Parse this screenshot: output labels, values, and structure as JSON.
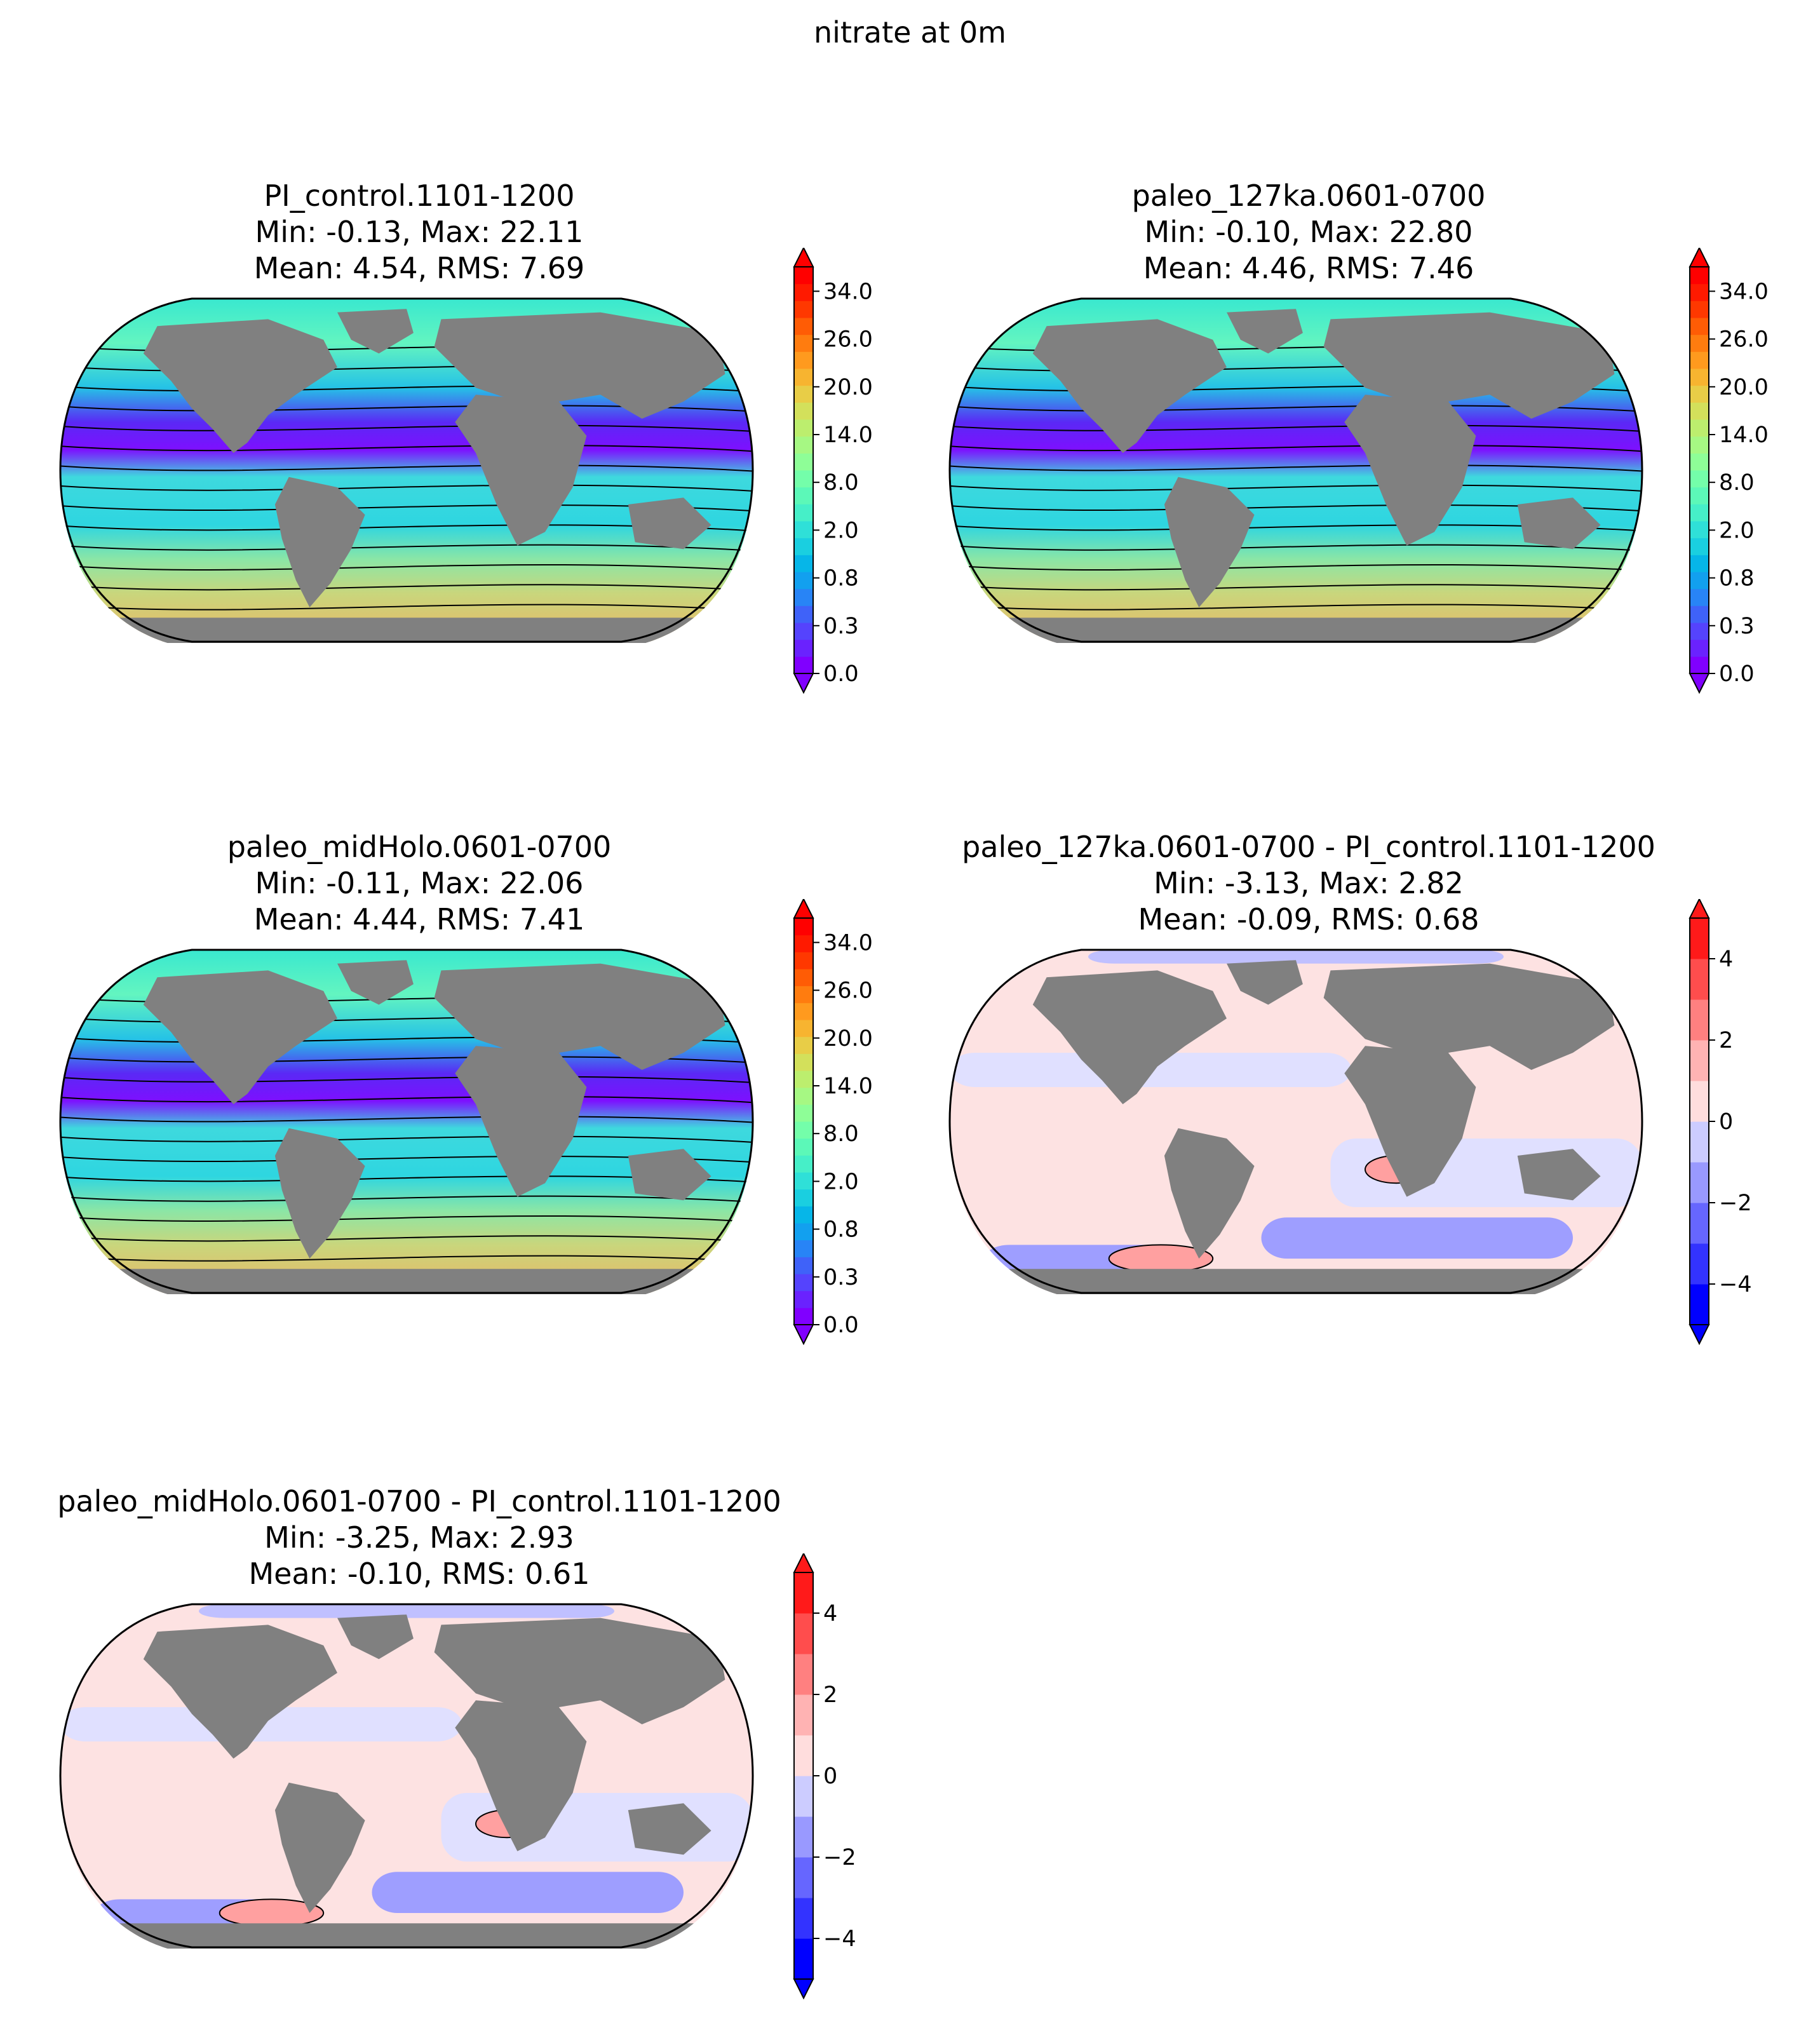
{
  "figure": {
    "suptitle": "nitrate at 0m"
  },
  "chart_data": [
    {
      "type": "heatmap",
      "title": "PI_control.1101-1200",
      "stats_line1": "Min: -0.13, Max: 22.11",
      "stats_line2": "Mean: 4.54, RMS: 7.69",
      "colormap": "rainbow",
      "colorbar": {
        "ticks": [
          "0.0",
          "0.3",
          "0.8",
          "2.0",
          "8.0",
          "14.0",
          "20.0",
          "26.0",
          "34.0"
        ],
        "extend": "both"
      },
      "projection": "Robinson",
      "land_color": "#808080"
    },
    {
      "type": "heatmap",
      "title": "paleo_127ka.0601-0700",
      "stats_line1": "Min: -0.10, Max: 22.80",
      "stats_line2": "Mean: 4.46, RMS: 7.46",
      "colormap": "rainbow",
      "colorbar": {
        "ticks": [
          "0.0",
          "0.3",
          "0.8",
          "2.0",
          "8.0",
          "14.0",
          "20.0",
          "26.0",
          "34.0"
        ],
        "extend": "both"
      },
      "projection": "Robinson",
      "land_color": "#808080"
    },
    {
      "type": "heatmap",
      "title": "paleo_midHolo.0601-0700",
      "stats_line1": "Min: -0.11, Max: 22.06",
      "stats_line2": "Mean: 4.44, RMS: 7.41",
      "colormap": "rainbow",
      "colorbar": {
        "ticks": [
          "0.0",
          "0.3",
          "0.8",
          "2.0",
          "8.0",
          "14.0",
          "20.0",
          "26.0",
          "34.0"
        ],
        "extend": "both"
      },
      "projection": "Robinson",
      "land_color": "#808080"
    },
    {
      "type": "heatmap",
      "title": "paleo_127ka.0601-0700 - PI_control.1101-1200",
      "stats_line1": "Min: -3.13, Max: 2.82",
      "stats_line2": "Mean: -0.09, RMS: 0.68",
      "colormap": "bwr",
      "colorbar": {
        "ticks": [
          "−4",
          "−2",
          "0",
          "2",
          "4"
        ],
        "extend": "both"
      },
      "projection": "Robinson",
      "land_color": "#808080"
    },
    {
      "type": "heatmap",
      "title": "paleo_midHolo.0601-0700 - PI_control.1101-1200",
      "stats_line1": "Min: -3.25, Max: 2.93",
      "stats_line2": "Mean: -0.10, RMS: 0.61",
      "colormap": "bwr",
      "colorbar": {
        "ticks": [
          "−4",
          "−2",
          "0",
          "2",
          "4"
        ],
        "extend": "both"
      },
      "projection": "Robinson",
      "land_color": "#808080"
    }
  ]
}
